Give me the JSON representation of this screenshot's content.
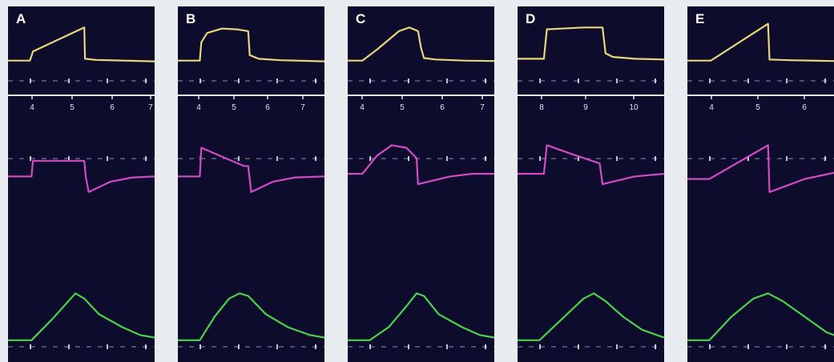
{
  "chart_data": [
    {
      "type": "line",
      "panel": "A",
      "x_ticks": [
        "4",
        "5",
        "6",
        "7"
      ],
      "series": [
        {
          "color": "#e8d67a",
          "points": [
            [
              0,
              0.05
            ],
            [
              0.15,
              0.05
            ],
            [
              0.17,
              0.3
            ],
            [
              0.52,
              0.95
            ],
            [
              0.525,
              0.1
            ],
            [
              0.6,
              0.07
            ],
            [
              1,
              0.03
            ]
          ]
        },
        {
          "color": "#d34bc4",
          "points": [
            [
              0,
              0.35
            ],
            [
              0.16,
              0.35
            ],
            [
              0.17,
              0.65
            ],
            [
              0.52,
              0.65
            ],
            [
              0.53,
              0.35
            ],
            [
              0.55,
              0.05
            ],
            [
              0.7,
              0.25
            ],
            [
              0.85,
              0.33
            ],
            [
              1,
              0.35
            ]
          ]
        },
        {
          "color": "#4cd24a",
          "points": [
            [
              0,
              0.05
            ],
            [
              0.16,
              0.05
            ],
            [
              0.3,
              0.45
            ],
            [
              0.46,
              0.95
            ],
            [
              0.52,
              0.85
            ],
            [
              0.62,
              0.55
            ],
            [
              0.78,
              0.3
            ],
            [
              0.9,
              0.15
            ],
            [
              1,
              0.1
            ]
          ]
        }
      ]
    },
    {
      "type": "line",
      "panel": "B",
      "x_ticks": [
        "4",
        "5",
        "6",
        "7"
      ],
      "series": [
        {
          "color": "#e8d67a",
          "points": [
            [
              0,
              0.05
            ],
            [
              0.15,
              0.05
            ],
            [
              0.16,
              0.55
            ],
            [
              0.2,
              0.8
            ],
            [
              0.3,
              0.92
            ],
            [
              0.4,
              0.9
            ],
            [
              0.48,
              0.85
            ],
            [
              0.49,
              0.2
            ],
            [
              0.55,
              0.1
            ],
            [
              0.7,
              0.06
            ],
            [
              1,
              0.03
            ]
          ]
        },
        {
          "color": "#d34bc4",
          "points": [
            [
              0,
              0.35
            ],
            [
              0.15,
              0.35
            ],
            [
              0.16,
              0.9
            ],
            [
              0.45,
              0.55
            ],
            [
              0.48,
              0.55
            ],
            [
              0.5,
              0.05
            ],
            [
              0.65,
              0.25
            ],
            [
              0.8,
              0.33
            ],
            [
              1,
              0.35
            ]
          ]
        },
        {
          "color": "#4cd24a",
          "points": [
            [
              0,
              0.05
            ],
            [
              0.15,
              0.05
            ],
            [
              0.25,
              0.5
            ],
            [
              0.35,
              0.85
            ],
            [
              0.42,
              0.95
            ],
            [
              0.48,
              0.9
            ],
            [
              0.6,
              0.55
            ],
            [
              0.75,
              0.3
            ],
            [
              0.9,
              0.15
            ],
            [
              1,
              0.1
            ]
          ]
        }
      ]
    },
    {
      "type": "line",
      "panel": "C",
      "x_ticks": [
        "4",
        "5",
        "6",
        "7"
      ],
      "series": [
        {
          "color": "#e8d67a",
          "points": [
            [
              0,
              0.05
            ],
            [
              0.1,
              0.05
            ],
            [
              0.2,
              0.35
            ],
            [
              0.35,
              0.85
            ],
            [
              0.42,
              0.95
            ],
            [
              0.48,
              0.85
            ],
            [
              0.5,
              0.4
            ],
            [
              0.52,
              0.12
            ],
            [
              0.6,
              0.08
            ],
            [
              0.8,
              0.05
            ],
            [
              1,
              0.04
            ]
          ]
        },
        {
          "color": "#d34bc4",
          "points": [
            [
              0,
              0.4
            ],
            [
              0.1,
              0.4
            ],
            [
              0.2,
              0.75
            ],
            [
              0.3,
              0.95
            ],
            [
              0.4,
              0.9
            ],
            [
              0.47,
              0.7
            ],
            [
              0.48,
              0.2
            ],
            [
              0.55,
              0.25
            ],
            [
              0.7,
              0.35
            ],
            [
              0.85,
              0.4
            ],
            [
              1,
              0.4
            ]
          ]
        },
        {
          "color": "#4cd24a",
          "points": [
            [
              0,
              0.05
            ],
            [
              0.15,
              0.05
            ],
            [
              0.28,
              0.3
            ],
            [
              0.4,
              0.7
            ],
            [
              0.47,
              0.95
            ],
            [
              0.52,
              0.9
            ],
            [
              0.62,
              0.55
            ],
            [
              0.78,
              0.3
            ],
            [
              0.9,
              0.15
            ],
            [
              1,
              0.1
            ]
          ]
        }
      ]
    },
    {
      "type": "line",
      "panel": "D",
      "x_ticks": [
        "8",
        "9",
        "10"
      ],
      "series": [
        {
          "color": "#e8d67a",
          "points": [
            [
              0,
              0.1
            ],
            [
              0.18,
              0.1
            ],
            [
              0.2,
              0.9
            ],
            [
              0.3,
              0.92
            ],
            [
              0.45,
              0.95
            ],
            [
              0.58,
              0.95
            ],
            [
              0.6,
              0.25
            ],
            [
              0.65,
              0.15
            ],
            [
              0.8,
              0.1
            ],
            [
              1,
              0.08
            ]
          ]
        },
        {
          "color": "#d34bc4",
          "points": [
            [
              0,
              0.4
            ],
            [
              0.18,
              0.4
            ],
            [
              0.2,
              0.95
            ],
            [
              0.4,
              0.75
            ],
            [
              0.56,
              0.6
            ],
            [
              0.58,
              0.2
            ],
            [
              0.65,
              0.25
            ],
            [
              0.8,
              0.35
            ],
            [
              1,
              0.4
            ]
          ]
        },
        {
          "color": "#4cd24a",
          "points": [
            [
              0,
              0.05
            ],
            [
              0.15,
              0.05
            ],
            [
              0.3,
              0.45
            ],
            [
              0.45,
              0.85
            ],
            [
              0.52,
              0.95
            ],
            [
              0.6,
              0.8
            ],
            [
              0.72,
              0.5
            ],
            [
              0.85,
              0.25
            ],
            [
              1,
              0.1
            ]
          ]
        }
      ]
    },
    {
      "type": "line",
      "panel": "E",
      "x_ticks": [
        "4",
        "5",
        "6"
      ],
      "series": [
        {
          "color": "#e8d67a",
          "points": [
            [
              0,
              0.05
            ],
            [
              0.16,
              0.05
            ],
            [
              0.55,
              1.05
            ],
            [
              0.56,
              0.08
            ],
            [
              0.7,
              0.06
            ],
            [
              1,
              0.04
            ]
          ]
        },
        {
          "color": "#d34bc4",
          "points": [
            [
              0,
              0.3
            ],
            [
              0.15,
              0.3
            ],
            [
              0.55,
              0.95
            ],
            [
              0.56,
              0.05
            ],
            [
              0.8,
              0.3
            ],
            [
              1,
              0.42
            ]
          ]
        },
        {
          "color": "#4cd24a",
          "points": [
            [
              0,
              0.05
            ],
            [
              0.15,
              0.05
            ],
            [
              0.3,
              0.5
            ],
            [
              0.45,
              0.85
            ],
            [
              0.55,
              0.95
            ],
            [
              0.65,
              0.8
            ],
            [
              0.8,
              0.5
            ],
            [
              0.95,
              0.2
            ],
            [
              1,
              0.15
            ]
          ]
        }
      ]
    }
  ],
  "panels": [
    {
      "letter": "A"
    },
    {
      "letter": "B"
    },
    {
      "letter": "C"
    },
    {
      "letter": "D"
    },
    {
      "letter": "E"
    }
  ]
}
